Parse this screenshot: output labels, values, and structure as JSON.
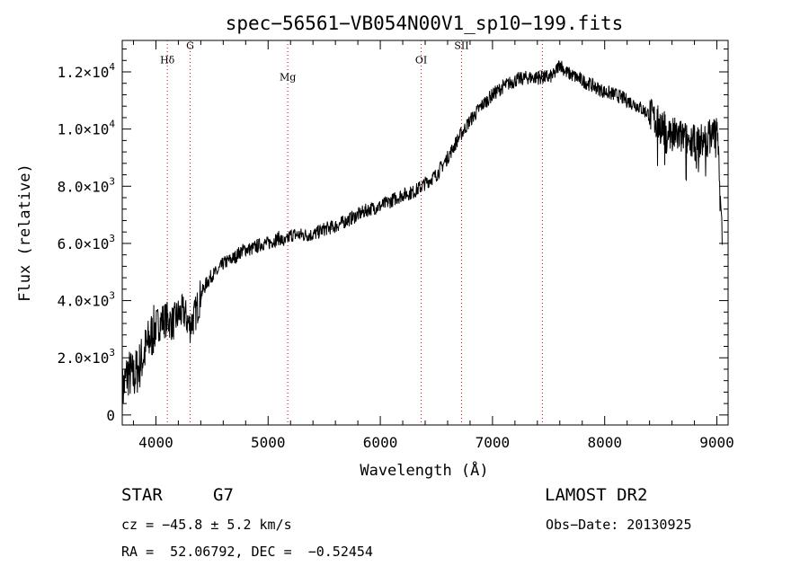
{
  "chart_data": {
    "type": "line",
    "title": "spec−56561−VB054N00V1_sp10−199.fits",
    "xlabel": "Wavelength (Å)",
    "ylabel": "Flux (relative)",
    "xlim": [
      3700,
      9100
    ],
    "ylim": [
      -350,
      13100
    ],
    "xticks": [
      {
        "value": 4000,
        "label": "4000"
      },
      {
        "value": 5000,
        "label": "5000"
      },
      {
        "value": 6000,
        "label": "6000"
      },
      {
        "value": 7000,
        "label": "7000"
      },
      {
        "value": 8000,
        "label": "8000"
      },
      {
        "value": 9000,
        "label": "9000"
      }
    ],
    "yticks": [
      {
        "value": 0,
        "mant": "0",
        "exp": ""
      },
      {
        "value": 2000,
        "mant": "2.0×10",
        "exp": "3"
      },
      {
        "value": 4000,
        "mant": "4.0×10",
        "exp": "3"
      },
      {
        "value": 6000,
        "mant": "6.0×10",
        "exp": "3"
      },
      {
        "value": 8000,
        "mant": "8.0×10",
        "exp": "3"
      },
      {
        "value": 10000,
        "mant": "1.0×10",
        "exp": "4"
      },
      {
        "value": 12000,
        "mant": "1.2×10",
        "exp": "4"
      }
    ],
    "grid": false,
    "lines": [
      {
        "label": "Hδ",
        "x": 4102,
        "label_y": 12300
      },
      {
        "label": "G",
        "x": 4305,
        "label_y": 12800
      },
      {
        "label": "Mg",
        "x": 5175,
        "label_y": 11700
      },
      {
        "label": "OI",
        "x": 6364,
        "label_y": 12300
      },
      {
        "label": "SII",
        "x": 6724,
        "label_y": 12800
      },
      {
        "label": "OI",
        "x": 7445,
        "label_y": 11800
      }
    ],
    "line_color": "#cc0000",
    "series_color": "#000000",
    "series": [
      {
        "x": [
          3700,
          3750,
          3800,
          3850,
          3900,
          3950,
          4000,
          4050,
          4100,
          4150,
          4200,
          4250,
          4300,
          4350,
          4400,
          4450,
          4500,
          4550,
          4600,
          4650,
          4700,
          4750,
          4800,
          4850,
          4900,
          4950,
          5000,
          5050,
          5100,
          5150,
          5200,
          5250,
          5300,
          5400,
          5500,
          5600,
          5700,
          5800,
          5900,
          6000,
          6100,
          6200,
          6300,
          6400,
          6500,
          6600,
          6700,
          6800,
          6900,
          7000,
          7100,
          7200,
          7300,
          7400,
          7500,
          7550,
          7600,
          7650,
          7700,
          7800,
          7900,
          8000,
          8100,
          8200,
          8300,
          8400,
          8500,
          8600,
          8700,
          8800,
          8900,
          9000,
          9050
        ],
        "y": [
          800,
          1500,
          1300,
          1700,
          2200,
          2700,
          3100,
          3300,
          3350,
          3200,
          3500,
          3600,
          3100,
          3500,
          4200,
          4600,
          4900,
          5000,
          5300,
          5400,
          5500,
          5700,
          5800,
          5800,
          5900,
          6000,
          6000,
          6100,
          6200,
          6000,
          6300,
          6300,
          6300,
          6300,
          6500,
          6600,
          6800,
          7000,
          7200,
          7300,
          7500,
          7700,
          7800,
          8100,
          8400,
          9000,
          9700,
          10300,
          10800,
          11200,
          11500,
          11700,
          11800,
          11800,
          11800,
          11900,
          12300,
          12000,
          11900,
          11700,
          11500,
          11300,
          11200,
          11000,
          10800,
          10500,
          10100,
          9800,
          9700,
          9500,
          9600,
          10000,
          6000
        ]
      }
    ]
  },
  "info": {
    "star_label": "STAR",
    "class": "G7",
    "survey": "LAMOST DR2",
    "cz": "cz = −45.8 ± 5.2 km/s",
    "obs_date": "Obs−Date: 20130925",
    "coords": "RA =  52.06792, DEC =  −0.52454"
  }
}
